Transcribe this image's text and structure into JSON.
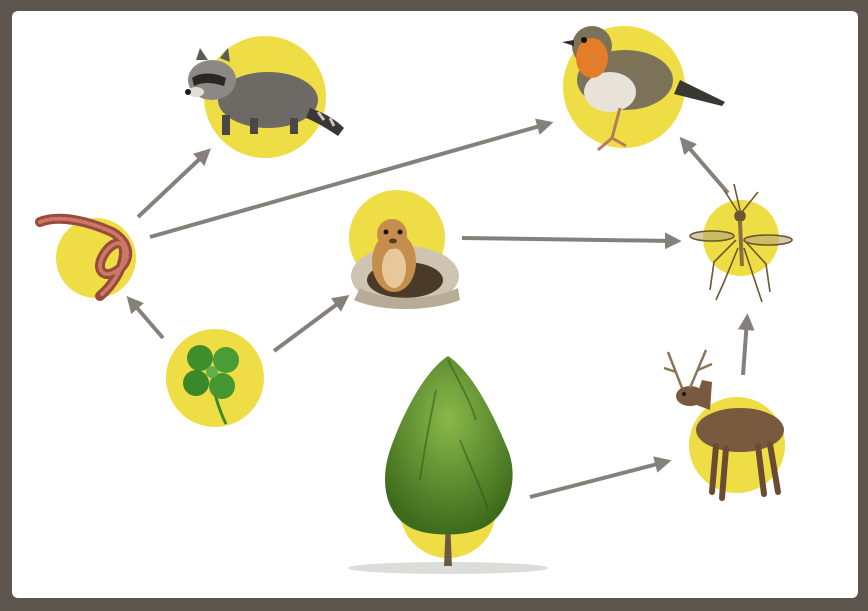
{
  "diagram": {
    "type": "food web",
    "colors": {
      "frame": "#5b554e",
      "background": "#ffffff",
      "highlight_circle": "#eedd44",
      "arrow": "#86807b"
    },
    "organisms": [
      {
        "id": "clover",
        "icon": "four-leaf-clover-icon"
      },
      {
        "id": "earthworm",
        "icon": "earthworm-icon"
      },
      {
        "id": "raccoon",
        "icon": "raccoon-icon"
      },
      {
        "id": "robin",
        "icon": "robin-icon"
      },
      {
        "id": "prairie-dog",
        "icon": "prairie-dog-icon"
      },
      {
        "id": "mosquito",
        "icon": "mosquito-icon"
      },
      {
        "id": "tree",
        "icon": "tree-icon"
      },
      {
        "id": "deer",
        "icon": "deer-icon"
      }
    ],
    "links": [
      {
        "from": "clover",
        "to": "earthworm"
      },
      {
        "from": "clover",
        "to": "prairie-dog"
      },
      {
        "from": "earthworm",
        "to": "raccoon"
      },
      {
        "from": "earthworm",
        "to": "robin"
      },
      {
        "from": "prairie-dog",
        "to": "mosquito"
      },
      {
        "from": "mosquito",
        "to": "robin"
      },
      {
        "from": "tree",
        "to": "deer"
      },
      {
        "from": "deer",
        "to": "mosquito"
      }
    ]
  }
}
